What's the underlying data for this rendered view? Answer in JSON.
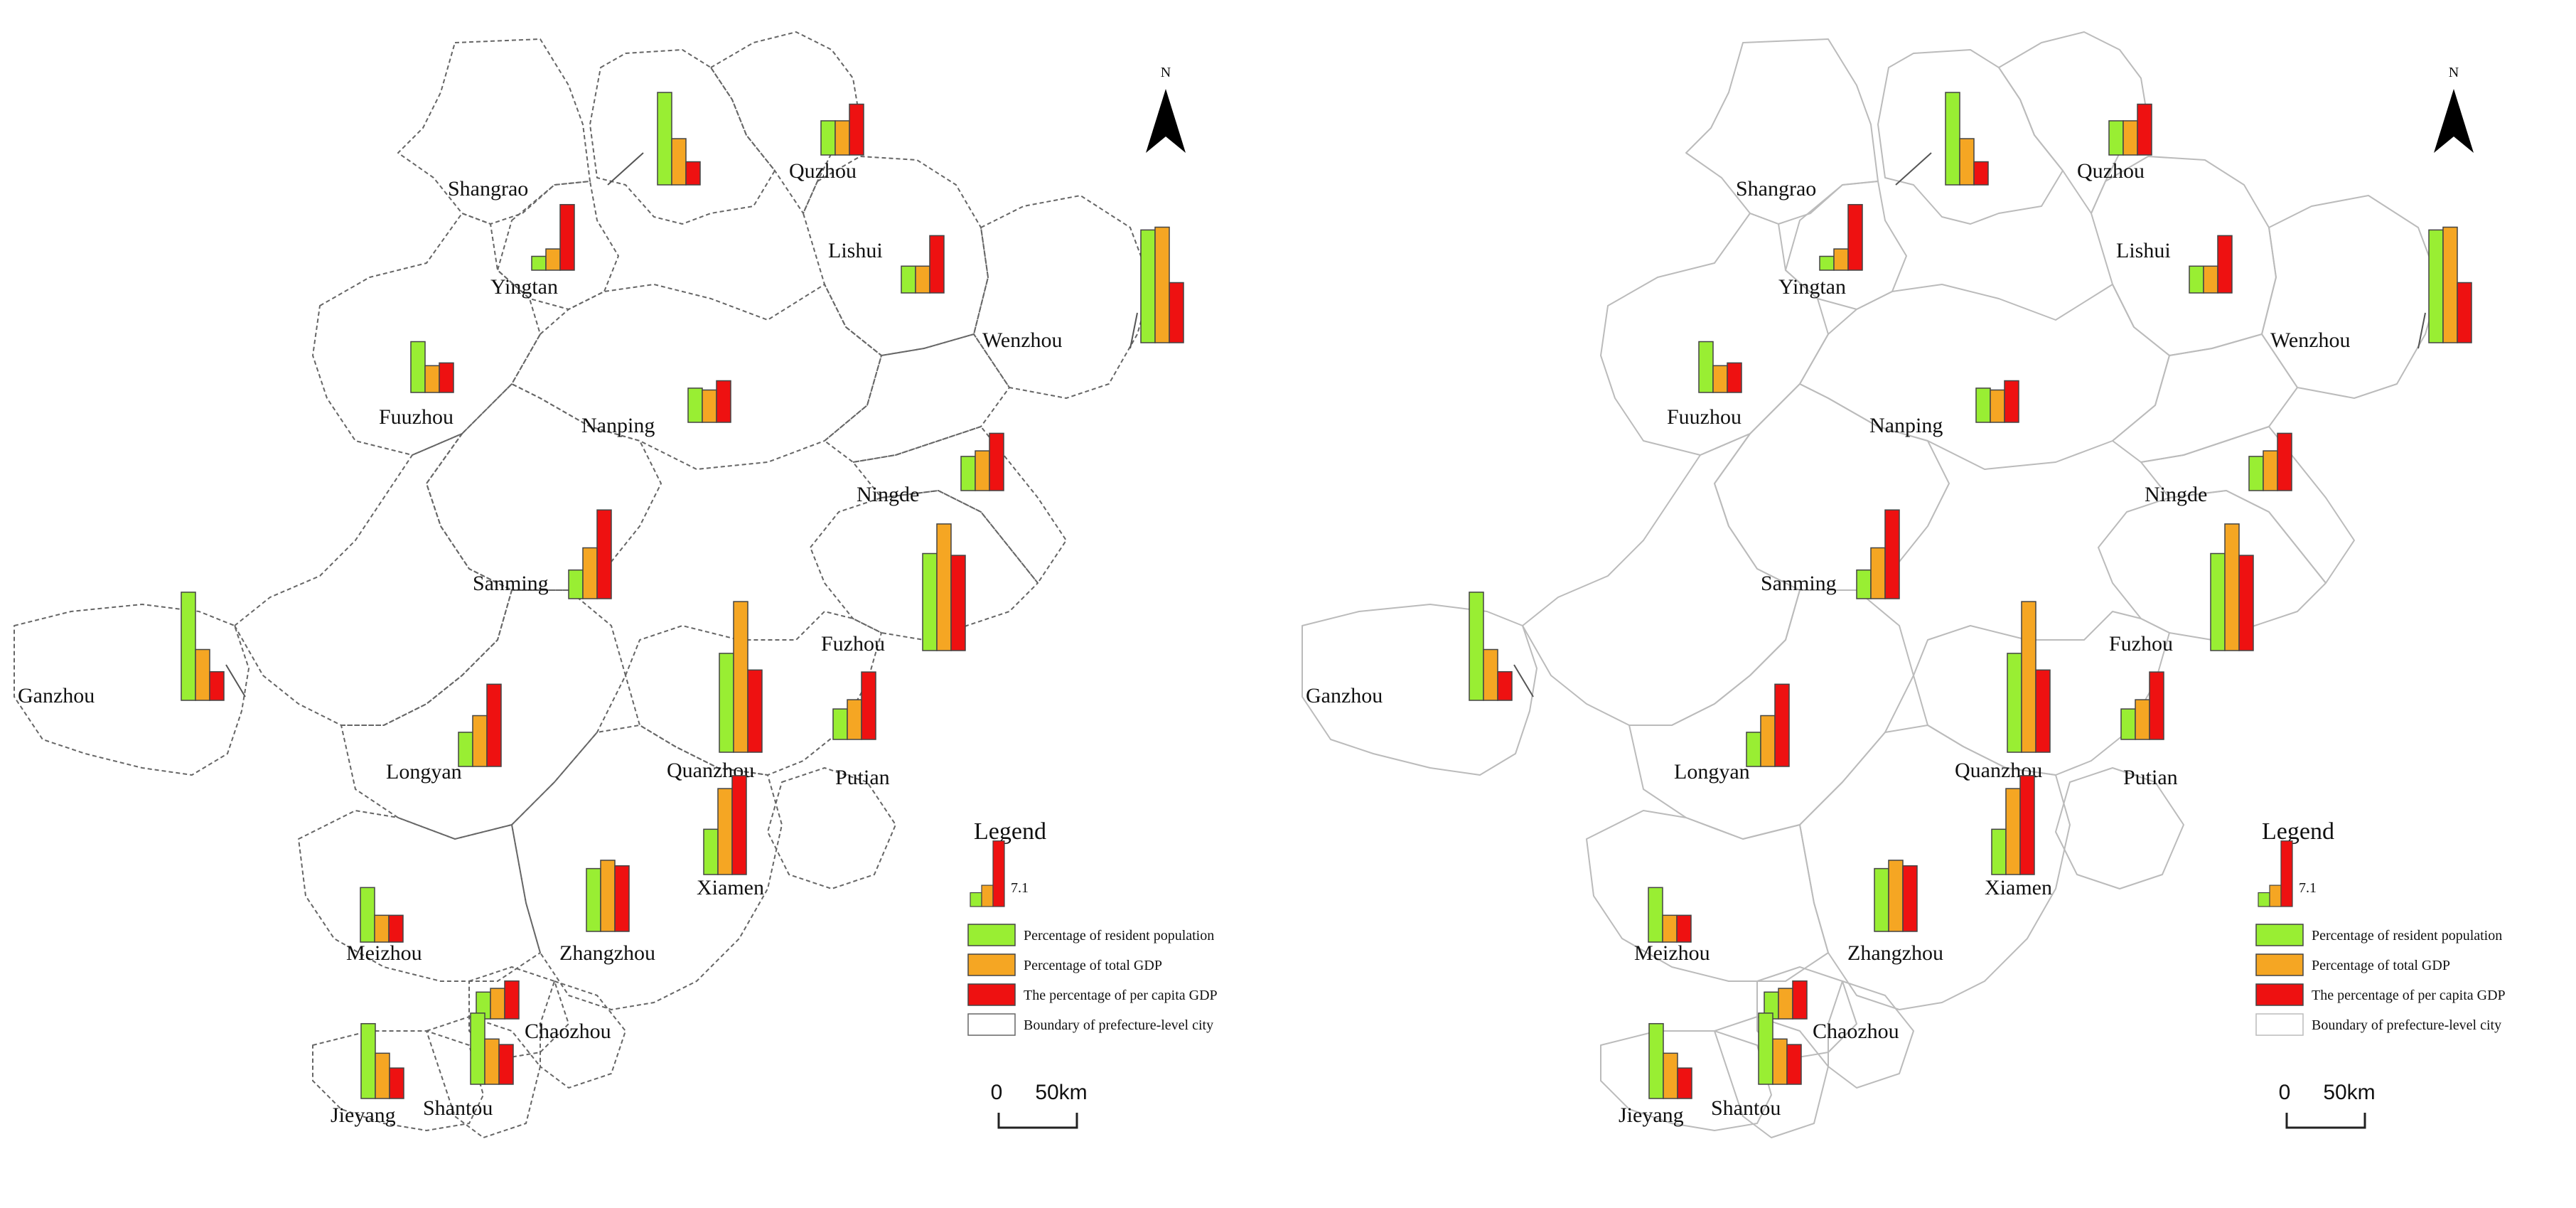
{
  "maps": [
    {
      "name": "dashed-boundary-map",
      "boundary_style": "dashed",
      "boundary_color": "#666666"
    },
    {
      "name": "solid-boundary-map",
      "boundary_style": "solid",
      "boundary_color": "#bbbbbb"
    }
  ],
  "north_arrow": {
    "label": "N"
  },
  "legend": {
    "title": "Legend",
    "sample_value": "7.1",
    "items": [
      {
        "label": "Percentage of resident population",
        "color": "#99ee33"
      },
      {
        "label": "Percentage of total GDP",
        "color": "#f5a623"
      },
      {
        "label": "The percentage of per capita GDP",
        "color": "#ee1111"
      },
      {
        "label": "Boundary of prefecture-level city",
        "color": "#ffffff"
      }
    ]
  },
  "scale_bar": {
    "zero": "0",
    "distance": "50km"
  },
  "chart_data": {
    "type": "bar",
    "series_names": [
      "Percentage of resident population",
      "Percentage of total GDP",
      "The percentage of per capita GDP"
    ],
    "series_colors": [
      "#99ee33",
      "#f5a623",
      "#ee1111"
    ],
    "legend_bar_value": 7.1,
    "cities": [
      {
        "name": "Shangrao",
        "values": [
          10.0,
          5.0,
          2.5
        ]
      },
      {
        "name": "Quzhou",
        "values": [
          3.7,
          3.7,
          5.5
        ]
      },
      {
        "name": "Yingtan",
        "values": [
          1.5,
          2.3,
          7.1
        ]
      },
      {
        "name": "Lishui",
        "values": [
          2.9,
          2.9,
          6.2
        ]
      },
      {
        "name": "Wenzhou",
        "values": [
          12.2,
          12.5,
          6.5
        ]
      },
      {
        "name": "Fuuzhou",
        "values": [
          5.5,
          2.9,
          3.2
        ]
      },
      {
        "name": "Nanping",
        "values": [
          3.7,
          3.5,
          4.5
        ]
      },
      {
        "name": "Ningde",
        "values": [
          3.7,
          4.3,
          6.2
        ]
      },
      {
        "name": "Sanming",
        "values": [
          3.1,
          5.5,
          9.6
        ]
      },
      {
        "name": "Fuzhou",
        "values": [
          10.5,
          13.7,
          10.3
        ]
      },
      {
        "name": "Ganzhou",
        "values": [
          11.7,
          5.5,
          3.1
        ]
      },
      {
        "name": "Longyan",
        "values": [
          3.7,
          5.5,
          8.9
        ]
      },
      {
        "name": "Quanzhou",
        "values": [
          10.7,
          16.3,
          8.9
        ]
      },
      {
        "name": "Putian",
        "values": [
          3.3,
          4.3,
          7.3
        ]
      },
      {
        "name": "Xiamen",
        "values": [
          4.9,
          9.3,
          10.7
        ]
      },
      {
        "name": "Meizhou",
        "values": [
          5.9,
          2.9,
          2.9
        ]
      },
      {
        "name": "Zhangzhou",
        "values": [
          6.8,
          7.7,
          7.1
        ]
      },
      {
        "name": "Chaozhou",
        "values": [
          2.9,
          3.3,
          4.1
        ]
      },
      {
        "name": "Shantou",
        "values": [
          7.7,
          4.9,
          4.3
        ]
      },
      {
        "name": "Jieyang",
        "values": [
          8.1,
          4.9,
          3.3
        ]
      }
    ]
  }
}
